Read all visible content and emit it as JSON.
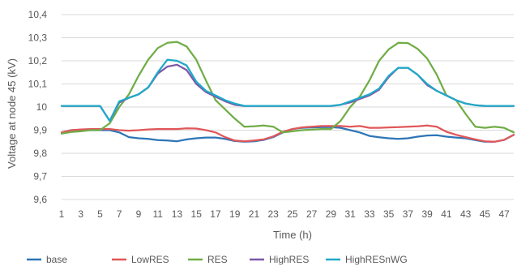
{
  "chart_data": {
    "type": "line",
    "title": "",
    "xlabel": "Time (h)",
    "ylabel": "Voltage at node 45 (kV)",
    "ylim": [
      9.6,
      10.4
    ],
    "yticks": [
      "9,6",
      "9,7",
      "9,8",
      "9,9",
      "10",
      "10,1",
      "10,2",
      "10,3",
      "10,4"
    ],
    "ytick_values": [
      9.6,
      9.7,
      9.8,
      9.9,
      10.0,
      10.1,
      10.2,
      10.3,
      10.4
    ],
    "xticks": [
      "1",
      "3",
      "5",
      "7",
      "9",
      "11",
      "13",
      "15",
      "17",
      "19",
      "21",
      "23",
      "25",
      "27",
      "29",
      "31",
      "33",
      "35",
      "37",
      "39",
      "41",
      "43",
      "45",
      "47"
    ],
    "xtick_values": [
      1,
      3,
      5,
      7,
      9,
      11,
      13,
      15,
      17,
      19,
      21,
      23,
      25,
      27,
      29,
      31,
      33,
      35,
      37,
      39,
      41,
      43,
      45,
      47
    ],
    "x": [
      1,
      2,
      3,
      4,
      5,
      6,
      7,
      8,
      9,
      10,
      11,
      12,
      13,
      14,
      15,
      16,
      17,
      18,
      19,
      20,
      21,
      22,
      23,
      24,
      25,
      26,
      27,
      28,
      29,
      30,
      31,
      32,
      33,
      34,
      35,
      36,
      37,
      38,
      39,
      40,
      41,
      42,
      43,
      44,
      45,
      46,
      47,
      48
    ],
    "grid": true,
    "legend": "bottom",
    "series": [
      {
        "name": "base",
        "color": "#2E75B6",
        "values": [
          9.89,
          9.9,
          9.9,
          9.9,
          9.9,
          9.9,
          9.89,
          9.87,
          9.865,
          9.862,
          9.857,
          9.855,
          9.852,
          9.86,
          9.865,
          9.868,
          9.868,
          9.862,
          9.853,
          9.85,
          9.852,
          9.858,
          9.87,
          9.89,
          9.905,
          9.91,
          9.912,
          9.913,
          9.913,
          9.91,
          9.9,
          9.89,
          9.875,
          9.869,
          9.865,
          9.862,
          9.865,
          9.872,
          9.877,
          9.878,
          9.872,
          9.868,
          9.865,
          9.857,
          9.85,
          9.85,
          9.858,
          9.88
        ]
      },
      {
        "name": "LowRES",
        "color": "#E15759",
        "values": [
          9.89,
          9.9,
          9.903,
          9.905,
          9.905,
          9.905,
          9.9,
          9.898,
          9.9,
          9.903,
          9.905,
          9.905,
          9.905,
          9.908,
          9.907,
          9.9,
          9.89,
          9.87,
          9.855,
          9.852,
          9.855,
          9.86,
          9.873,
          9.893,
          9.905,
          9.912,
          9.915,
          9.918,
          9.918,
          9.918,
          9.915,
          9.918,
          9.91,
          9.91,
          9.912,
          9.913,
          9.915,
          9.917,
          9.92,
          9.915,
          9.893,
          9.88,
          9.87,
          9.86,
          9.852,
          9.85,
          9.858,
          9.88
        ]
      },
      {
        "name": "RES",
        "color": "#70AD47",
        "values": [
          9.885,
          9.892,
          9.895,
          9.9,
          9.9,
          9.93,
          10.0,
          10.055,
          10.135,
          10.205,
          10.255,
          10.278,
          10.282,
          10.262,
          10.205,
          10.115,
          10.03,
          9.99,
          9.95,
          9.915,
          9.917,
          9.92,
          9.915,
          9.89,
          9.895,
          9.9,
          9.902,
          9.905,
          9.905,
          9.94,
          10.0,
          10.045,
          10.115,
          10.2,
          10.25,
          10.278,
          10.277,
          10.252,
          10.21,
          10.14,
          10.05,
          10.03,
          9.97,
          9.915,
          9.91,
          9.915,
          9.91,
          9.89
        ]
      },
      {
        "name": "HighRES",
        "color": "#7E57A8",
        "values": [
          10.005,
          10.005,
          10.005,
          10.005,
          10.005,
          9.94,
          10.02,
          10.04,
          10.055,
          10.085,
          10.145,
          10.175,
          10.183,
          10.16,
          10.1,
          10.065,
          10.045,
          10.025,
          10.01,
          10.005,
          10.005,
          10.005,
          10.005,
          10.005,
          10.005,
          10.005,
          10.005,
          10.005,
          10.005,
          10.01,
          10.02,
          10.035,
          10.05,
          10.075,
          10.13,
          10.17,
          10.17,
          10.14,
          10.095,
          10.07,
          10.05,
          10.03,
          10.015,
          10.008,
          10.005,
          10.005,
          10.005,
          10.005
        ]
      },
      {
        "name": "HighRESnWG",
        "color": "#1FA9C9",
        "values": [
          10.005,
          10.005,
          10.005,
          10.005,
          10.005,
          9.94,
          10.025,
          10.04,
          10.055,
          10.085,
          10.15,
          10.205,
          10.2,
          10.18,
          10.11,
          10.07,
          10.05,
          10.03,
          10.015,
          10.005,
          10.005,
          10.005,
          10.005,
          10.005,
          10.005,
          10.005,
          10.005,
          10.005,
          10.005,
          10.01,
          10.025,
          10.04,
          10.055,
          10.08,
          10.135,
          10.17,
          10.17,
          10.14,
          10.1,
          10.07,
          10.05,
          10.03,
          10.015,
          10.008,
          10.005,
          10.005,
          10.005,
          10.005
        ]
      }
    ]
  }
}
